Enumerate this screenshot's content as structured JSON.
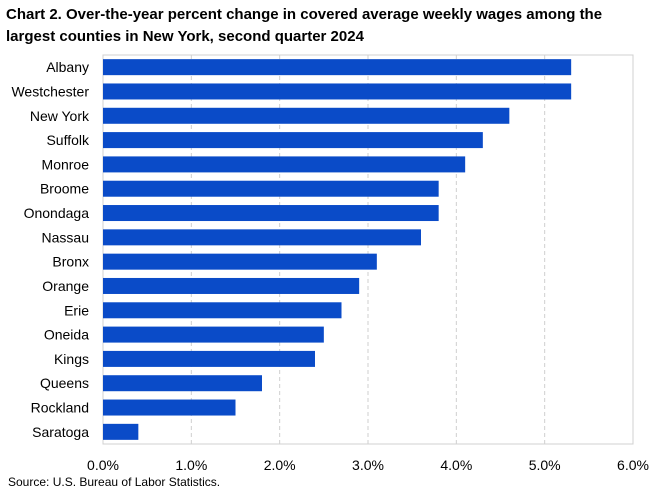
{
  "chart_data": {
    "type": "bar",
    "orientation": "horizontal",
    "title": "Chart 2. Over-the-year percent change in covered average weekly wages among the largest counties in New York, second quarter 2024",
    "categories": [
      "Albany",
      "Westchester",
      "New York",
      "Suffolk",
      "Monroe",
      "Broome",
      "Onondaga",
      "Nassau",
      "Bronx",
      "Orange",
      "Erie",
      "Oneida",
      "Kings",
      "Queens",
      "Rockland",
      "Saratoga"
    ],
    "values": [
      5.3,
      5.3,
      4.6,
      4.3,
      4.1,
      3.8,
      3.8,
      3.6,
      3.1,
      2.9,
      2.7,
      2.5,
      2.4,
      1.8,
      1.5,
      0.4
    ],
    "xlim": [
      0,
      6
    ],
    "x_ticks": [
      0,
      1,
      2,
      3,
      4,
      5,
      6
    ],
    "x_tick_labels": [
      "0.0%",
      "1.0%",
      "2.0%",
      "3.0%",
      "4.0%",
      "5.0%",
      "6.0%"
    ],
    "xlabel": "",
    "ylabel": "",
    "grid": "vertical dashed",
    "bar_color": "#0a4bc8",
    "source": "Source: U.S. Bureau of Labor Statistics."
  }
}
